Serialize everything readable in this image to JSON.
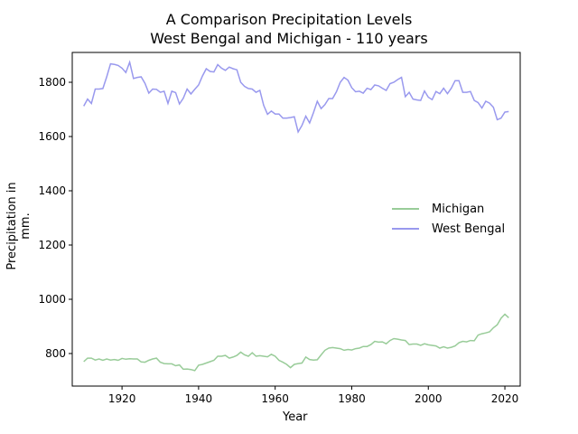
{
  "chart_data": {
    "type": "line",
    "title": "A Comparison Precipitation Levels",
    "subtitle": "West Bengal and Michigan - 110 years",
    "xlabel": "Year",
    "ylabel": "Precipitation in mm.",
    "xlim": [
      1907,
      2024
    ],
    "ylim": [
      680,
      1910
    ],
    "xticks": [
      1920,
      1940,
      1960,
      1980,
      2000,
      2020
    ],
    "yticks": [
      800,
      1000,
      1200,
      1400,
      1600,
      1800
    ],
    "grid": false,
    "legend": "center-right",
    "x_start": 1910,
    "series": [
      {
        "name": "Michigan",
        "color": "#99cc99",
        "values": [
          770,
          783,
          783,
          776,
          780,
          775,
          780,
          776,
          778,
          775,
          782,
          779,
          781,
          780,
          780,
          769,
          768,
          775,
          780,
          783,
          768,
          763,
          762,
          762,
          755,
          758,
          742,
          743,
          741,
          737,
          757,
          760,
          765,
          770,
          775,
          790,
          790,
          793,
          783,
          787,
          793,
          805,
          795,
          790,
          803,
          790,
          792,
          790,
          788,
          797,
          790,
          775,
          768,
          760,
          748,
          760,
          763,
          765,
          787,
          778,
          776,
          777,
          795,
          812,
          820,
          822,
          820,
          818,
          812,
          815,
          813,
          818,
          820,
          826,
          826,
          833,
          845,
          842,
          843,
          836,
          848,
          855,
          853,
          850,
          848,
          833,
          835,
          835,
          830,
          836,
          832,
          830,
          828,
          820,
          825,
          820,
          823,
          828,
          840,
          845,
          843,
          848,
          847,
          868,
          873,
          876,
          880,
          895,
          906,
          930,
          945,
          932
        ]
      },
      {
        "name": "West Bengal",
        "color": "#9999ee",
        "values": [
          1712,
          1738,
          1722,
          1775,
          1775,
          1777,
          1820,
          1868,
          1866,
          1862,
          1852,
          1836,
          1874,
          1814,
          1818,
          1820,
          1796,
          1760,
          1775,
          1774,
          1763,
          1767,
          1722,
          1767,
          1762,
          1720,
          1741,
          1775,
          1757,
          1774,
          1790,
          1823,
          1850,
          1840,
          1838,
          1865,
          1852,
          1844,
          1856,
          1850,
          1846,
          1800,
          1785,
          1777,
          1775,
          1763,
          1770,
          1715,
          1682,
          1694,
          1683,
          1683,
          1668,
          1668,
          1670,
          1673,
          1617,
          1641,
          1675,
          1650,
          1688,
          1730,
          1703,
          1718,
          1740,
          1740,
          1765,
          1800,
          1818,
          1808,
          1780,
          1765,
          1767,
          1760,
          1778,
          1773,
          1790,
          1787,
          1778,
          1770,
          1795,
          1800,
          1810,
          1818,
          1747,
          1763,
          1738,
          1735,
          1733,
          1768,
          1745,
          1736,
          1766,
          1758,
          1778,
          1758,
          1778,
          1806,
          1806,
          1763,
          1763,
          1766,
          1733,
          1725,
          1705,
          1730,
          1723,
          1708,
          1662,
          1668,
          1690,
          1692
        ]
      }
    ]
  }
}
